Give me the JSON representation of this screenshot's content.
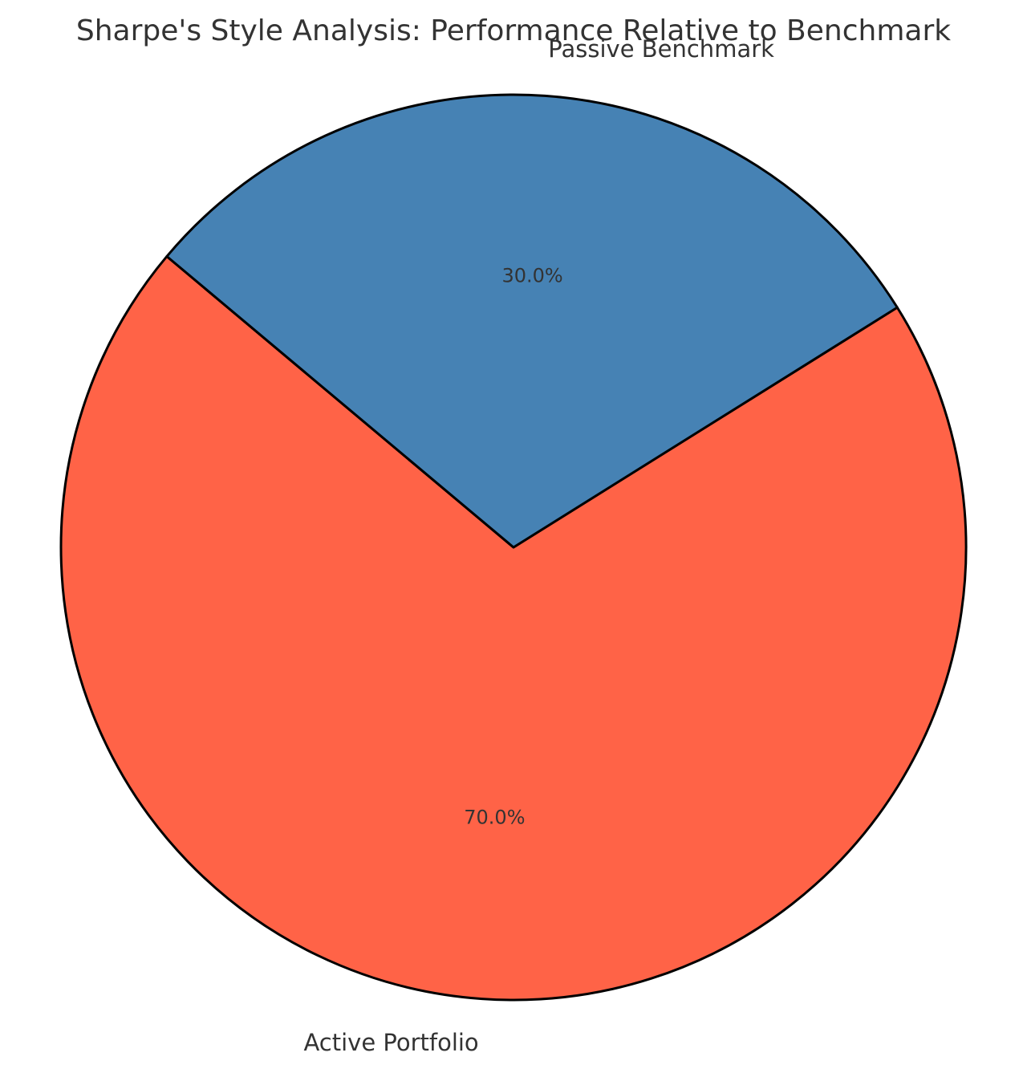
{
  "chart_data": {
    "type": "pie",
    "title": "Sharpe's Style Analysis: Performance Relative to Benchmark",
    "slices": [
      {
        "label": "Active Portfolio",
        "value": 70.0,
        "pct_label": "70.0%",
        "color": "#FF6347"
      },
      {
        "label": "Passive Benchmark",
        "value": 30.0,
        "pct_label": "30.0%",
        "color": "#4682B4"
      }
    ],
    "start_angle_deg": 140,
    "direction": "counterclockwise",
    "edge_color": "#000000",
    "legend": "none"
  }
}
